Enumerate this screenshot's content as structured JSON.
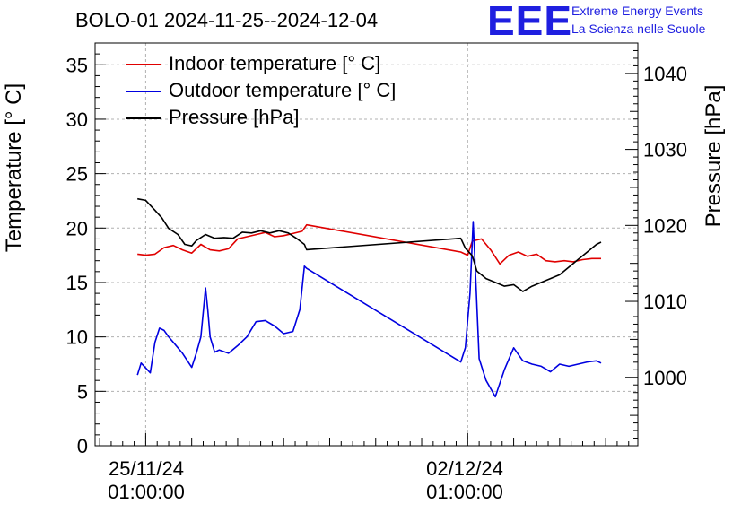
{
  "title": "BOLO-01 2024-11-25--2024-12-04",
  "logo": {
    "mark": "EEE",
    "line1": "Extreme Energy Events",
    "line2": "La Scienza nelle Scuole",
    "color": "#1f1fe0"
  },
  "chart_data": {
    "type": "line",
    "ylabel_left": "Temperature [° C]",
    "ylabel_right": "Pressure [hPa]",
    "y_left_ticks": [
      0,
      5,
      10,
      15,
      20,
      25,
      30,
      35
    ],
    "y_left_range": [
      0,
      37
    ],
    "y_right_ticks": [
      1000,
      1010,
      1020,
      1030,
      1040
    ],
    "y_right_range": [
      991,
      1044
    ],
    "x_ticks": [
      {
        "x": 0,
        "line1": "25/11/24",
        "line2": "01:00:00"
      },
      {
        "x": 7,
        "line1": "02/12/24",
        "line2": "01:00:00"
      }
    ],
    "x_unit": "days since 25/11/24 01:00",
    "x_range": [
      -1.1,
      10.7
    ],
    "grid": true,
    "legend_position": "top-left",
    "series": [
      {
        "name": "Indoor temperature [° C]",
        "axis": "left",
        "color": "#e00000",
        "x": [
          -0.18,
          0.0,
          0.2,
          0.4,
          0.6,
          0.8,
          1.0,
          1.2,
          1.4,
          1.6,
          1.8,
          2.0,
          2.2,
          2.4,
          2.6,
          2.8,
          3.0,
          3.2,
          3.4,
          3.5,
          6.85,
          7.0,
          7.1,
          7.3,
          7.5,
          7.7,
          7.9,
          8.1,
          8.3,
          8.5,
          8.7,
          8.9,
          9.1,
          9.3,
          9.5,
          9.7,
          9.9
        ],
        "y": [
          17.6,
          17.5,
          17.6,
          18.2,
          18.4,
          18.0,
          17.7,
          18.5,
          18.0,
          17.9,
          18.1,
          19.0,
          19.2,
          19.4,
          19.6,
          19.2,
          19.3,
          19.5,
          19.7,
          20.3,
          17.8,
          17.5,
          18.8,
          19.0,
          18.0,
          16.7,
          17.5,
          17.8,
          17.4,
          17.6,
          17.0,
          16.9,
          17.0,
          16.9,
          17.1,
          17.2,
          17.2
        ]
      },
      {
        "name": "Outdoor temperature [° C]",
        "axis": "left",
        "color": "#0000e0",
        "x": [
          -0.18,
          -0.1,
          0.1,
          0.2,
          0.3,
          0.4,
          0.5,
          0.6,
          0.8,
          1.0,
          1.1,
          1.2,
          1.3,
          1.35,
          1.4,
          1.5,
          1.6,
          1.8,
          2.0,
          2.2,
          2.4,
          2.6,
          2.8,
          3.0,
          3.2,
          3.35,
          3.45,
          3.5,
          6.85,
          6.95,
          7.05,
          7.12,
          7.18,
          7.25,
          7.4,
          7.6,
          7.8,
          8.0,
          8.2,
          8.4,
          8.6,
          8.8,
          9.0,
          9.2,
          9.4,
          9.6,
          9.8,
          9.9
        ],
        "y": [
          6.5,
          7.6,
          6.7,
          9.5,
          10.8,
          10.6,
          10.0,
          9.5,
          8.5,
          7.2,
          8.5,
          10.0,
          14.5,
          12.5,
          10.0,
          8.6,
          8.8,
          8.5,
          9.2,
          10.0,
          11.4,
          11.5,
          11.0,
          10.3,
          10.5,
          12.5,
          16.5,
          16.3,
          7.7,
          9.0,
          14.0,
          20.6,
          15.0,
          8.0,
          6.0,
          4.5,
          7.0,
          9.0,
          7.8,
          7.5,
          7.3,
          6.8,
          7.5,
          7.3,
          7.5,
          7.7,
          7.8,
          7.6
        ]
      },
      {
        "name": "Pressure [hPa]",
        "axis": "right",
        "color": "#000000",
        "x": [
          -0.18,
          0.0,
          0.2,
          0.35,
          0.5,
          0.7,
          0.85,
          1.0,
          1.1,
          1.3,
          1.5,
          1.7,
          1.9,
          2.1,
          2.3,
          2.5,
          2.7,
          2.9,
          3.1,
          3.3,
          3.45,
          3.5,
          6.85,
          6.95,
          7.1,
          7.2,
          7.4,
          7.6,
          7.8,
          8.0,
          8.2,
          8.4,
          8.6,
          8.8,
          9.0,
          9.2,
          9.4,
          9.6,
          9.8,
          9.9
        ],
        "y": [
          1023.5,
          1023.3,
          1022.0,
          1021.0,
          1019.6,
          1018.8,
          1017.5,
          1017.3,
          1018.0,
          1018.8,
          1018.3,
          1018.4,
          1018.3,
          1019.1,
          1019.0,
          1019.3,
          1019.0,
          1019.3,
          1019.0,
          1018.2,
          1017.5,
          1016.8,
          1018.3,
          1017.0,
          1016.0,
          1014.0,
          1013.0,
          1012.5,
          1012.0,
          1012.2,
          1011.3,
          1012.0,
          1012.5,
          1013.0,
          1013.5,
          1014.5,
          1015.5,
          1016.5,
          1017.5,
          1017.8
        ]
      }
    ]
  }
}
